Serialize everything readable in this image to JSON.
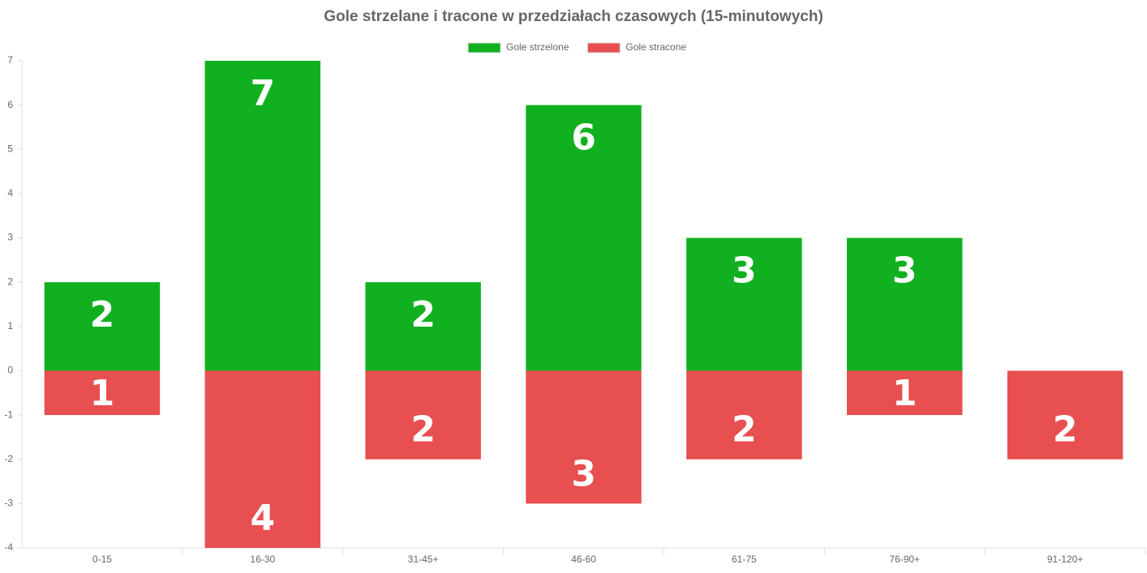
{
  "chart_data": {
    "type": "bar",
    "stacked": true,
    "title": "Gole strzelane i tracone w przedziałach czasowych (15-minutowych)",
    "categories": [
      "0-15",
      "16-30",
      "31-45+",
      "46-60",
      "61-75",
      "76-90+",
      "91-120+"
    ],
    "series": [
      {
        "name": "Gole strzelone",
        "color": "#11b021",
        "values": [
          2,
          7,
          2,
          6,
          3,
          3,
          0
        ]
      },
      {
        "name": "Gole stracone",
        "color": "#e84f50",
        "values": [
          -1,
          -4,
          -2,
          -3,
          -2,
          -1,
          -2
        ],
        "value_labels": [
          "1",
          "4",
          "2",
          "3",
          "2",
          "1",
          "2"
        ]
      }
    ],
    "ylim": [
      -4,
      7
    ],
    "yticks": [
      -4,
      -3,
      -2,
      -1,
      0,
      1,
      2,
      3,
      4,
      5,
      6,
      7
    ],
    "grid": false,
    "legend": "top"
  }
}
